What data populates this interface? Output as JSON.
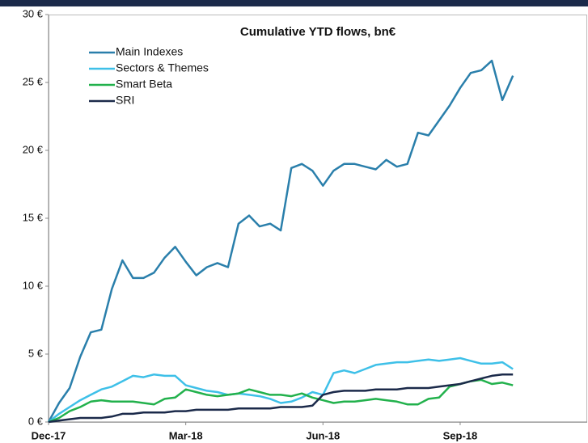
{
  "chart_data": {
    "type": "line",
    "title": "Cumulative YTD flows, bn€",
    "categories": [
      "Dec-17",
      null,
      null,
      null,
      null,
      null,
      null,
      null,
      null,
      null,
      null,
      null,
      null,
      "Mar-18",
      null,
      null,
      null,
      null,
      null,
      null,
      null,
      null,
      null,
      null,
      null,
      null,
      "Jun-18",
      null,
      null,
      null,
      null,
      null,
      null,
      null,
      null,
      null,
      null,
      null,
      null,
      "Sep-18",
      null,
      null,
      null,
      null,
      null,
      null,
      null,
      null,
      null,
      null,
      null,
      null
    ],
    "series": [
      {
        "name": "Main Indexes",
        "color": "#2a7fab",
        "values": [
          0,
          1.4,
          2.5,
          4.8,
          6.6,
          6.8,
          9.8,
          11.9,
          10.6,
          10.6,
          11.0,
          12.1,
          12.9,
          11.8,
          10.8,
          11.4,
          11.7,
          11.4,
          14.6,
          15.2,
          14.4,
          14.6,
          14.1,
          18.7,
          19.0,
          18.5,
          17.4,
          18.5,
          19.0,
          19.0,
          18.8,
          18.6,
          19.3,
          18.8,
          19.0,
          21.3,
          21.1,
          22.2,
          23.3,
          24.6,
          25.7,
          25.9,
          26.6,
          23.7,
          25.5,
          null,
          null,
          null,
          null,
          null,
          null,
          null
        ]
      },
      {
        "name": "Sectors & Themes",
        "color": "#3ec0e8",
        "values": [
          0,
          0.6,
          1.1,
          1.6,
          2.0,
          2.4,
          2.6,
          3.0,
          3.4,
          3.3,
          3.5,
          3.4,
          3.4,
          2.7,
          2.5,
          2.3,
          2.2,
          2.0,
          2.1,
          2.0,
          1.9,
          1.7,
          1.4,
          1.5,
          1.8,
          2.2,
          2.0,
          3.6,
          3.8,
          3.6,
          3.9,
          4.2,
          4.3,
          4.4,
          4.4,
          4.5,
          4.6,
          4.5,
          4.6,
          4.7,
          4.5,
          4.3,
          4.3,
          4.4,
          3.9,
          null,
          null,
          null,
          null,
          null,
          null,
          null
        ]
      },
      {
        "name": "Smart Beta",
        "color": "#22b14c",
        "values": [
          0,
          0.3,
          0.8,
          1.1,
          1.5,
          1.6,
          1.5,
          1.5,
          1.5,
          1.4,
          1.3,
          1.7,
          1.8,
          2.4,
          2.2,
          2.0,
          1.9,
          2.0,
          2.1,
          2.4,
          2.2,
          2.0,
          2.0,
          1.9,
          2.1,
          1.8,
          1.6,
          1.4,
          1.5,
          1.5,
          1.6,
          1.7,
          1.6,
          1.5,
          1.3,
          1.3,
          1.7,
          1.8,
          2.6,
          2.8,
          3.0,
          3.1,
          2.8,
          2.9,
          2.7,
          null,
          null,
          null,
          null,
          null,
          null,
          null
        ]
      },
      {
        "name": "SRI",
        "color": "#1b2a4a",
        "values": [
          0,
          0.1,
          0.2,
          0.3,
          0.3,
          0.3,
          0.4,
          0.6,
          0.6,
          0.7,
          0.7,
          0.7,
          0.8,
          0.8,
          0.9,
          0.9,
          0.9,
          0.9,
          1.0,
          1.0,
          1.0,
          1.0,
          1.1,
          1.1,
          1.1,
          1.2,
          2.0,
          2.2,
          2.3,
          2.3,
          2.3,
          2.4,
          2.4,
          2.4,
          2.5,
          2.5,
          2.5,
          2.6,
          2.7,
          2.8,
          3.0,
          3.2,
          3.4,
          3.5,
          3.5,
          null,
          null,
          null,
          null,
          null,
          null,
          null
        ]
      }
    ],
    "ylim": [
      0,
      30
    ],
    "yticks": [
      {
        "value": 0,
        "label": "0 €"
      },
      {
        "value": 5,
        "label": "5 €"
      },
      {
        "value": 10,
        "label": "10 €"
      },
      {
        "value": 15,
        "label": "15 €"
      },
      {
        "value": 20,
        "label": "20 €"
      },
      {
        "value": 25,
        "label": "25 €"
      },
      {
        "value": 30,
        "label": "30 €"
      }
    ],
    "legend": "upper left"
  }
}
